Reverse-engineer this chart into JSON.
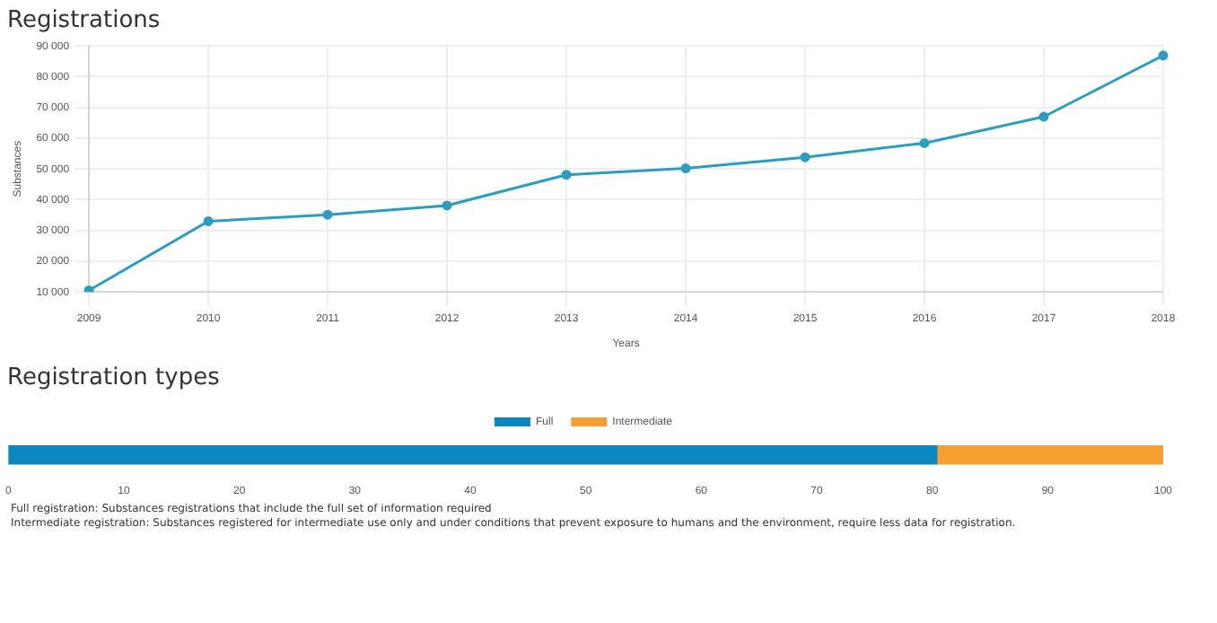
{
  "chart_data": [
    {
      "type": "line",
      "title": "Registrations",
      "xlabel": "Years",
      "ylabel": "Substances",
      "categories": [
        "2009",
        "2010",
        "2011",
        "2012",
        "2013",
        "2014",
        "2015",
        "2016",
        "2017",
        "2018"
      ],
      "values": [
        10500,
        33000,
        35100,
        38100,
        48100,
        50200,
        53800,
        58400,
        67000,
        86900
      ],
      "color": "#2b9cc2",
      "ylim": [
        10000,
        90000
      ],
      "yticks": [
        {
          "value": 10000,
          "label": "10 000"
        },
        {
          "value": 20000,
          "label": "20 000"
        },
        {
          "value": 30000,
          "label": "30 000"
        },
        {
          "value": 40000,
          "label": "40 000"
        },
        {
          "value": 50000,
          "label": "50 000"
        },
        {
          "value": 60000,
          "label": "60 000"
        },
        {
          "value": 70000,
          "label": "70 000"
        },
        {
          "value": 80000,
          "label": "80 000"
        },
        {
          "value": 90000,
          "label": "90 000"
        }
      ],
      "grid": true,
      "marker": "circle"
    },
    {
      "type": "bar",
      "title": "Registration types",
      "orientation": "horizontal",
      "stacked": true,
      "categories": [
        null
      ],
      "series": [
        {
          "name": "Full",
          "color": "#0a87bf",
          "values": [
            80.4
          ]
        },
        {
          "name": "Intermediate",
          "color": "#f5a031",
          "values": [
            19.6
          ]
        }
      ],
      "xlim": [
        0,
        100
      ],
      "xticks": [
        0,
        10,
        20,
        30,
        40,
        50,
        60,
        70,
        80,
        90,
        100
      ],
      "legend": "top",
      "grid": false,
      "annotations": [
        "Full registration: Substances registrations that include the full set of information required",
        "Intermediate registration: Substances registered for intermediate use only and under conditions that prevent exposure to humans and the environment, require less data for registration."
      ]
    }
  ]
}
